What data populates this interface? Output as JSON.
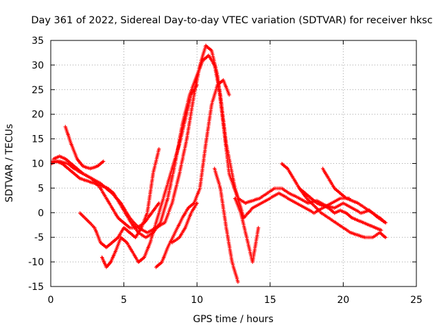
{
  "chart_data": {
    "type": "scatter",
    "title": "Day 361 of 2022, Sidereal Day-to-day VTEC variation (SDTVAR) for receiver hksc",
    "xlabel": "GPS time / hours",
    "ylabel": "SDTVAR / TECUs",
    "xlim": [
      0,
      25
    ],
    "ylim": [
      -15,
      35
    ],
    "xticks": [
      0,
      5,
      10,
      15,
      20,
      25
    ],
    "yticks": [
      -15,
      -10,
      -5,
      0,
      5,
      10,
      15,
      20,
      25,
      30,
      35
    ],
    "grid": true,
    "marker": "+",
    "series": [
      {
        "name": "sat1",
        "color": "#ff0000",
        "x": [
          0,
          0.6,
          1.2,
          1.6,
          2.2,
          2.8,
          3.4,
          3.8,
          4.2,
          4.8,
          5.4,
          6.0,
          6.6,
          7.2,
          7.8,
          8.3,
          8.8,
          9.3,
          9.8,
          10.2,
          10.6,
          11.0,
          11.4,
          11.8,
          12.2,
          12.8,
          13.3,
          13.8,
          14.3,
          14.8,
          15.3,
          15.8,
          16.3,
          17.0,
          17.6,
          18.2,
          18.8,
          19.4,
          20.0,
          20.6,
          21.2,
          21.8,
          22.4,
          22.9
        ],
        "y": [
          10.5,
          10.5,
          10,
          9,
          8,
          7,
          6,
          5,
          4,
          2,
          -1,
          -3,
          -4,
          -3,
          -2,
          2,
          8,
          15,
          24,
          30,
          34,
          33,
          28,
          18,
          8,
          3,
          2,
          2.5,
          3,
          4,
          5,
          5,
          4,
          3,
          2,
          2.5,
          1.5,
          1,
          2,
          1,
          0,
          0.5,
          -1,
          -2
        ]
      },
      {
        "name": "sat2",
        "color": "#ff0000",
        "x": [
          0,
          0.4,
          0.8,
          1.2,
          1.6,
          2.0,
          2.5,
          3.0,
          3.5,
          3.9,
          4.3,
          4.7,
          5.1,
          5.5,
          6.0,
          6.5,
          7.0,
          7.5,
          8.0,
          8.5,
          9.0,
          9.5,
          10.0,
          10.4,
          10.8,
          11.2,
          11.6,
          12.0,
          12.6,
          13.2,
          13.8,
          14.4,
          15.0,
          15.6,
          16.2,
          16.8,
          17.4,
          18.0,
          18.6,
          19.2,
          19.8,
          20.4
        ],
        "y": [
          10,
          10.5,
          10,
          9,
          8,
          7,
          6.5,
          6,
          5.5,
          5,
          4,
          2,
          0,
          -2,
          -4,
          -5,
          -4,
          -2,
          3,
          10,
          18,
          24,
          28,
          31,
          32,
          30,
          24,
          14,
          5,
          -1,
          1,
          2,
          3,
          4,
          3,
          2,
          1,
          0,
          1,
          2,
          3,
          3
        ]
      },
      {
        "name": "sat3",
        "color": "#ff0000",
        "x": [
          1.0,
          1.4,
          1.8,
          2.2,
          2.7,
          3.2,
          3.6
        ],
        "y": [
          17.5,
          14,
          11,
          9.5,
          9,
          9.5,
          10.5
        ]
      },
      {
        "name": "sat4",
        "color": "#ff0000",
        "x": [
          0.2,
          0.6,
          1.0,
          1.4,
          1.8,
          2.2,
          2.8,
          3.4,
          3.8,
          4.2,
          4.6,
          5.0,
          5.4,
          5.9,
          6.4,
          6.9,
          7.4
        ],
        "y": [
          11,
          11.5,
          11,
          10,
          9,
          8,
          7,
          5,
          3,
          1,
          -1,
          -2,
          -3,
          -3,
          -2,
          0,
          2
        ]
      },
      {
        "name": "sat5",
        "color": "#ff0000",
        "x": [
          2.0,
          2.5,
          3.0,
          3.4,
          3.8,
          4.2,
          4.6,
          5.0,
          5.4,
          5.8,
          6.2,
          6.6,
          7.0,
          7.4
        ],
        "y": [
          0,
          -1.5,
          -3,
          -6,
          -7,
          -6,
          -5,
          -3,
          -4,
          -5,
          -3,
          0,
          8,
          13
        ]
      },
      {
        "name": "sat6",
        "color": "#ff0000",
        "x": [
          3.5,
          3.8,
          4.1,
          4.4,
          4.8,
          5.2,
          5.6,
          6.0,
          6.4,
          6.8,
          7.2,
          7.6,
          8.0,
          8.4,
          8.8,
          9.2,
          9.6,
          10.0
        ],
        "y": [
          -9,
          -11,
          -10,
          -8,
          -5,
          -6,
          -8,
          -10,
          -9,
          -6,
          -2,
          2,
          6,
          10,
          14,
          19,
          24,
          26
        ]
      },
      {
        "name": "sat7",
        "color": "#ff0000",
        "x": [
          7.2,
          7.6,
          8.0,
          8.5,
          9.0,
          9.4,
          9.8,
          10.2,
          10.6,
          11.0,
          11.4,
          11.8,
          12.2
        ],
        "y": [
          -11,
          -10,
          -7,
          -4,
          -1,
          1,
          2,
          5,
          14,
          22,
          26,
          27,
          24
        ]
      },
      {
        "name": "sat8",
        "color": "#ff0000",
        "x": [
          8.3,
          8.8,
          9.2,
          9.6,
          10.0
        ],
        "y": [
          -6,
          -5,
          -3,
          0,
          2
        ]
      },
      {
        "name": "sat9",
        "color": "#ff0000",
        "x": [
          11.2,
          11.6,
          12.0,
          12.4,
          12.8
        ],
        "y": [
          9,
          5,
          -3,
          -10,
          -14
        ]
      },
      {
        "name": "sat10",
        "color": "#ff0000",
        "x": [
          12.6,
          13.0,
          13.4,
          13.8,
          14.2
        ],
        "y": [
          3,
          0,
          -5,
          -10,
          -3
        ]
      },
      {
        "name": "sat11",
        "color": "#ff0000",
        "x": [
          15.8,
          16.2,
          16.6,
          17.0,
          17.5,
          18.0,
          18.5,
          19.0,
          19.5,
          20.0,
          20.5,
          21.0,
          21.5,
          22.0,
          22.5,
          22.9
        ],
        "y": [
          10,
          9,
          7,
          5,
          3,
          1.5,
          0,
          -1,
          -2,
          -3,
          -4,
          -4.5,
          -5,
          -5,
          -4,
          -5
        ]
      },
      {
        "name": "sat12",
        "color": "#ff0000",
        "x": [
          18.6,
          19.0,
          19.4,
          19.8,
          20.2,
          20.6,
          21.0,
          21.5,
          22.0,
          22.5,
          22.9
        ],
        "y": [
          9,
          7,
          5,
          4,
          3,
          2.5,
          2,
          1,
          0,
          -1,
          -2
        ]
      },
      {
        "name": "sat13",
        "color": "#ff0000",
        "x": [
          17.0,
          17.4,
          17.8,
          18.2,
          18.6,
          19.0,
          19.4,
          19.8,
          20.2,
          20.6,
          21.0,
          21.4,
          21.8,
          22.2,
          22.6
        ],
        "y": [
          5,
          4,
          3,
          2,
          1.5,
          1,
          0,
          0.5,
          0,
          -1,
          -1.5,
          -2,
          -2.5,
          -3,
          -3.5
        ]
      }
    ]
  }
}
